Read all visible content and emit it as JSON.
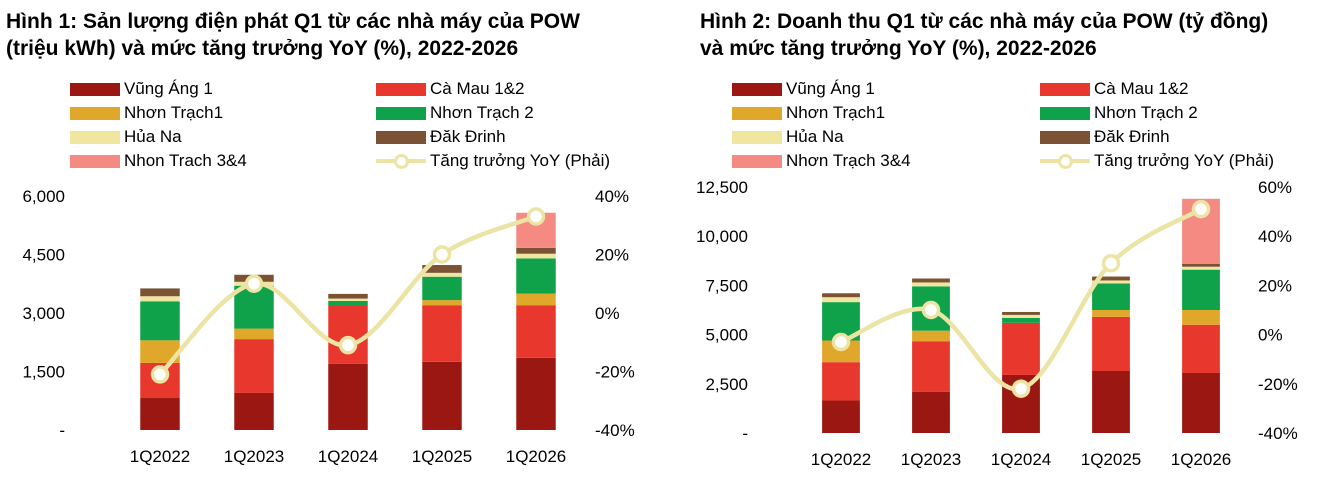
{
  "colors": {
    "vung_ang": "#9b1812",
    "ca_mau": "#e8382d",
    "nhon_trach1": "#e0a82a",
    "nhon_trach2": "#0fa24a",
    "hua_na": "#f0e6a0",
    "dak_drinh": "#7b5233",
    "nhon_trach34": "#f48a82",
    "yoy": "#ece4a4"
  },
  "chart_data": [
    {
      "type": "bar",
      "title": "Hình 1: Sản lượng điện phát Q1 từ các nhà máy của POW (triệu kWh) và mức tăng trưởng YoY (%), 2022-2026",
      "title_lines": [
        "Hình 1: Sản lượng điện phát Q1 từ các nhà máy của POW",
        "(triệu kWh) và mức tăng trưởng YoY (%), 2022-2026"
      ],
      "stacked": true,
      "categories": [
        "1Q2022",
        "1Q2023",
        "1Q2024",
        "1Q2025",
        "1Q2026"
      ],
      "ylim": [
        0,
        6000
      ],
      "y_ticks": [
        "-",
        "1,500",
        "3,000",
        "4,500",
        "6,000"
      ],
      "y2lim": [
        -40,
        40
      ],
      "y2_ticks": [
        "-40%",
        "-20%",
        "0%",
        "20%",
        "40%"
      ],
      "legend_labels": [
        "Vũng Áng 1",
        "Cà Mau 1&2",
        "Nhơn Trạch1",
        "Nhơn Trạch 2",
        "Hủa Na",
        "Đăk Đrinh",
        "Nhon Trach 3&4",
        "Tăng trưởng YoY (Phải)"
      ],
      "series": [
        {
          "name": "Vũng Áng 1",
          "color_key": "vung_ang",
          "values": [
            820,
            950,
            1700,
            1750,
            1850
          ]
        },
        {
          "name": "Cà Mau 1&2",
          "color_key": "ca_mau",
          "values": [
            900,
            1380,
            1480,
            1450,
            1350
          ]
        },
        {
          "name": "Nhơn Trạch1",
          "color_key": "nhon_trach1",
          "values": [
            580,
            270,
            0,
            130,
            300
          ]
        },
        {
          "name": "Nhơn Trạch 2",
          "color_key": "nhon_trach2",
          "values": [
            1000,
            1100,
            130,
            600,
            900
          ]
        },
        {
          "name": "Hủa Na",
          "color_key": "hua_na",
          "values": [
            130,
            100,
            60,
            100,
            120
          ]
        },
        {
          "name": "Đăk Đrinh",
          "color_key": "dak_drinh",
          "values": [
            200,
            180,
            120,
            200,
            150
          ]
        },
        {
          "name": "Nhon Trach 3&4",
          "color_key": "nhon_trach34",
          "values": [
            0,
            0,
            0,
            0,
            900
          ]
        }
      ],
      "yoy": {
        "name": "Tăng trưởng YoY (Phải)",
        "color_key": "yoy",
        "values": [
          -21,
          10,
          -11,
          20,
          33
        ]
      }
    },
    {
      "type": "bar",
      "title": "Hình 2: Doanh thu Q1 từ các nhà máy của POW (tỷ đồng) và mức tăng trưởng YoY (%), 2022-2026",
      "title_lines": [
        "Hình 2: Doanh thu Q1 từ các nhà máy của POW (tỷ đồng)",
        "và mức tăng trưởng YoY (%), 2022-2026"
      ],
      "stacked": true,
      "categories": [
        "1Q2022",
        "1Q2023",
        "1Q2024",
        "1Q2025",
        "1Q2026"
      ],
      "ylim": [
        0,
        12500
      ],
      "y_ticks": [
        "-",
        "2,500",
        "5,000",
        "7,500",
        "10,000",
        "12,500"
      ],
      "y2lim": [
        -40,
        60
      ],
      "y2_ticks": [
        "-40%",
        "-20%",
        "0%",
        "20%",
        "40%",
        "60%"
      ],
      "legend_labels": [
        "Vũng Áng 1",
        "Cà Mau 1&2",
        "Nhơn Trạch1",
        "Nhơn Trạch 2",
        "Hủa Na",
        "Đăk Đrinh",
        "Nhơn Trạch 3&4",
        "Tăng trưởng YoY (Phải)"
      ],
      "series": [
        {
          "name": "Vũng Áng 1",
          "color_key": "vung_ang",
          "values": [
            1650,
            2100,
            2950,
            3150,
            3050
          ]
        },
        {
          "name": "Cà Mau 1&2",
          "color_key": "ca_mau",
          "values": [
            1950,
            2550,
            2650,
            2750,
            2450
          ]
        },
        {
          "name": "Nhơn Trạch1",
          "color_key": "nhon_trach1",
          "values": [
            1100,
            550,
            0,
            350,
            750
          ]
        },
        {
          "name": "Nhơn Trạch 2",
          "color_key": "nhon_trach2",
          "values": [
            1950,
            2250,
            250,
            1350,
            2050
          ]
        },
        {
          "name": "Hủa Na",
          "color_key": "hua_na",
          "values": [
            250,
            200,
            150,
            150,
            150
          ]
        },
        {
          "name": "Đăk Đrinh",
          "color_key": "dak_drinh",
          "values": [
            200,
            200,
            150,
            200,
            150
          ]
        },
        {
          "name": "Nhơn Trạch 3&4",
          "color_key": "nhon_trach34",
          "values": [
            0,
            0,
            0,
            0,
            3300
          ]
        }
      ],
      "yoy": {
        "name": "Tăng trưởng YoY (Phải)",
        "color_key": "yoy",
        "values": [
          -3,
          10,
          -22,
          29,
          51
        ]
      }
    }
  ]
}
